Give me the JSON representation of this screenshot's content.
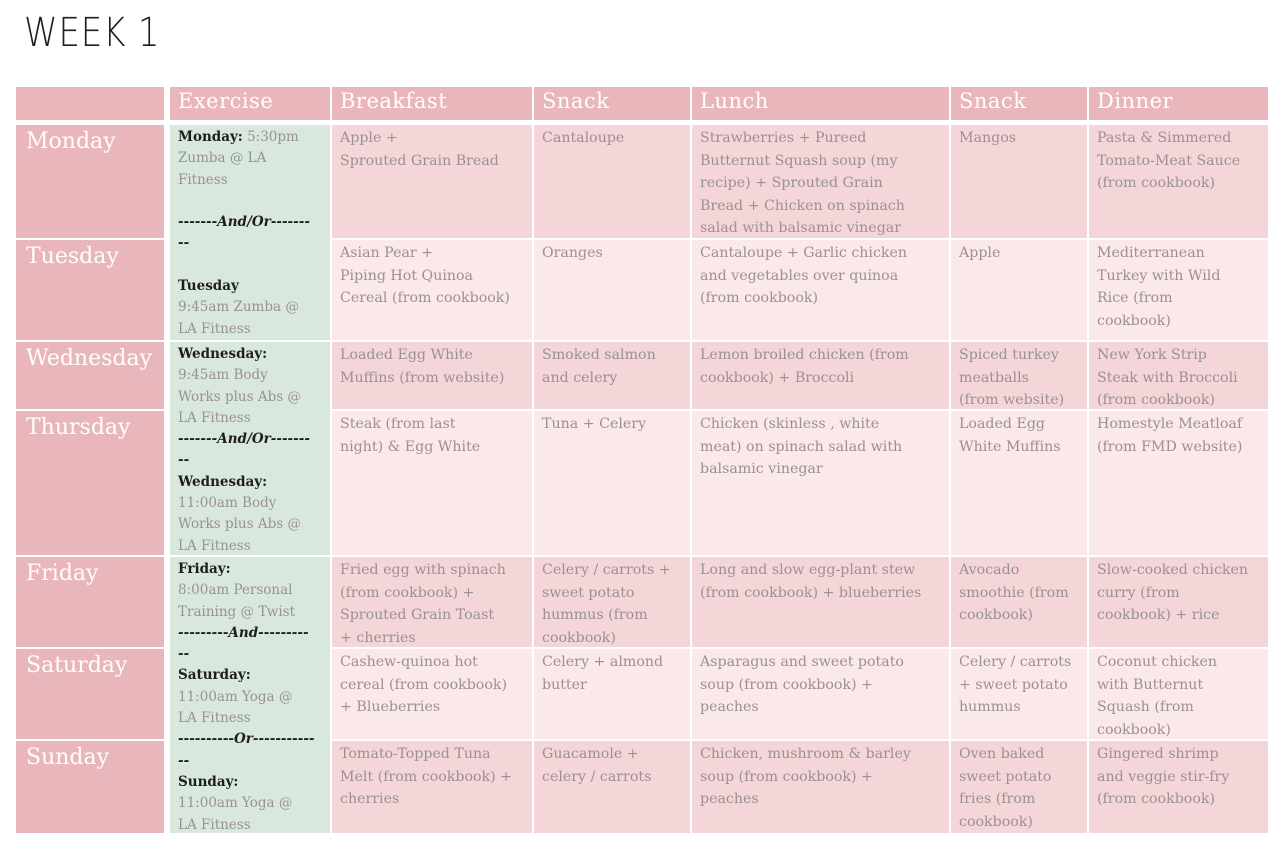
{
  "title": "WEEK 1",
  "columns": [
    "Exercise",
    "Breakfast",
    "Snack",
    "Lunch",
    "Snack",
    "Dinner"
  ],
  "days": [
    "Monday",
    "Tuesday",
    "Wednesday",
    "Thursday",
    "Friday",
    "Saturday",
    "Sunday"
  ],
  "meals": [
    {
      "breakfast": [
        "Apple +",
        "Sprouted Grain Bread"
      ],
      "snack1": [
        "Cantaloupe"
      ],
      "lunch": [
        "Strawberries + Pureed",
        "Butternut Squash soup (my",
        "recipe) + Sprouted Grain",
        "Bread + Chicken on spinach",
        "salad with balsamic vinegar"
      ],
      "snack2": [
        "Mangos"
      ],
      "dinner": [
        "Pasta & Simmered",
        "Tomato-Meat Sauce",
        "(from cookbook)"
      ]
    },
    {
      "breakfast": [
        "Asian Pear +",
        "Piping Hot Quinoa",
        "Cereal (from cookbook)"
      ],
      "snack1": [
        "Oranges"
      ],
      "lunch": [
        "Cantaloupe + Garlic chicken",
        "and vegetables over quinoa",
        "(from cookbook)"
      ],
      "snack2": [
        "Apple"
      ],
      "dinner": [
        "Mediterranean",
        "Turkey with Wild",
        "Rice (from",
        "cookbook)"
      ]
    },
    {
      "breakfast": [
        "Loaded Egg White",
        "Muffins (from website)"
      ],
      "snack1": [
        "Smoked salmon",
        "and celery"
      ],
      "lunch": [
        "Lemon broiled chicken (from",
        "cookbook) + Broccoli"
      ],
      "snack2": [
        "Spiced turkey",
        "meatballs",
        "(from website)"
      ],
      "dinner": [
        "New York Strip",
        "Steak with Broccoli",
        "(from cookbook)"
      ]
    },
    {
      "breakfast": [
        "Steak (from last",
        "night) & Egg White"
      ],
      "snack1": [
        "Tuna + Celery"
      ],
      "lunch": [
        "Chicken (skinless , white",
        "meat) on spinach salad with",
        "balsamic vinegar"
      ],
      "snack2": [
        "Loaded Egg",
        "White Muffins"
      ],
      "dinner": [
        "Homestyle Meatloaf",
        "(from FMD website)"
      ]
    },
    {
      "breakfast": [
        "Fried egg with spinach",
        "(from cookbook) +",
        "Sprouted Grain Toast",
        "+ cherries"
      ],
      "snack1": [
        "Celery / carrots +",
        "sweet potato",
        "hummus (from",
        "cookbook)"
      ],
      "lunch": [
        "Long and slow egg-plant stew",
        "(from cookbook) + blueberries"
      ],
      "snack2": [
        "Avocado",
        "smoothie (from",
        "cookbook)"
      ],
      "dinner": [
        "Slow-cooked chicken",
        "curry (from",
        "cookbook) + rice"
      ]
    },
    {
      "breakfast": [
        "Cashew-quinoa hot",
        "cereal (from cookbook)",
        "+ Blueberries"
      ],
      "snack1": [
        "Celery + almond",
        "butter"
      ],
      "lunch": [
        "Asparagus and sweet potato",
        "soup (from cookbook) +",
        "peaches"
      ],
      "snack2": [
        "Celery / carrots",
        "+ sweet potato",
        "hummus"
      ],
      "dinner": [
        "Coconut chicken",
        "with Butternut",
        "Squash (from",
        "cookbook)"
      ]
    },
    {
      "breakfast": [
        "Tomato-Topped Tuna",
        "Melt (from cookbook) +",
        "cherries"
      ],
      "snack1": [
        "Guacamole +",
        "celery / carrots"
      ],
      "lunch": [
        "Chicken, mushroom & barley",
        "soup (from cookbook)  +",
        "peaches"
      ],
      "snack2": [
        "Oven baked",
        "sweet potato",
        "fries (from",
        "cookbook)"
      ],
      "dinner": [
        "Gingered shrimp",
        "and veggie stir-fry",
        "(from cookbook)"
      ]
    }
  ],
  "exercise": [
    {
      "lines": [
        {
          "day": "Monday:",
          "text": " 5:30pm"
        },
        {
          "text": "Zumba @ LA"
        },
        {
          "text": "Fitness"
        },
        {
          "text": ""
        },
        {
          "sep": "-------And/Or-------"
        },
        {
          "sep": "--"
        },
        {
          "text": ""
        },
        {
          "day": "Tuesday"
        },
        {
          "text": "9:45am Zumba @"
        },
        {
          "text": "LA Fitness"
        }
      ]
    },
    {
      "lines": [
        {
          "day": "Wednesday:"
        },
        {
          "text": "9:45am Body"
        },
        {
          "text": "Works plus Abs @"
        },
        {
          "text": "LA Fitness"
        },
        {
          "sep": "-------And/Or-------"
        },
        {
          "sep": "--"
        },
        {
          "day": "Wednesday:"
        },
        {
          "text": "11:00am Body"
        },
        {
          "text": "Works plus Abs @"
        },
        {
          "text": "LA Fitness"
        }
      ]
    },
    {
      "lines": [
        {
          "day": "Friday:"
        },
        {
          "text": "8:00am Personal"
        },
        {
          "text": "Training @ Twist"
        },
        {
          "sep": "---------And---------"
        },
        {
          "sep": "--"
        },
        {
          "day": "Saturday:"
        },
        {
          "text": "11:00am Yoga @"
        },
        {
          "text": "LA Fitness"
        },
        {
          "sep": "----------Or-----------"
        },
        {
          "sep": "--"
        },
        {
          "day": "Sunday:"
        },
        {
          "text": "11:00am Yoga @"
        },
        {
          "text": "LA Fitness"
        }
      ]
    }
  ]
}
